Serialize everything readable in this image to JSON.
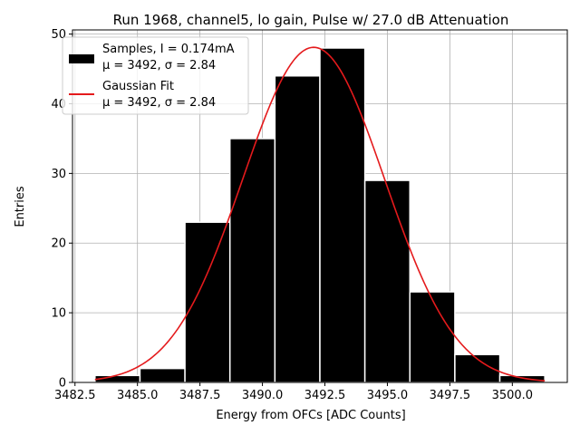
{
  "chart_data": {
    "type": "bar",
    "title": "Run 1968, channel5, lo gain, Pulse w/ 27.0 dB Attenuation",
    "xlabel": "Energy from OFCs [ADC Counts]",
    "ylabel": "Entries",
    "xlim": [
      3482.4,
      3502.2
    ],
    "ylim": [
      0,
      50.6
    ],
    "xticks": [
      3482.5,
      3485.0,
      3487.5,
      3490.0,
      3492.5,
      3495.0,
      3497.5,
      3500.0
    ],
    "xtick_labels": [
      "3482.5",
      "3485.0",
      "3487.5",
      "3490.0",
      "3492.5",
      "3495.0",
      "3497.5",
      "3500.0"
    ],
    "yticks": [
      0,
      10,
      20,
      30,
      40,
      50
    ],
    "ytick_labels": [
      "0",
      "10",
      "20",
      "30",
      "40",
      "50"
    ],
    "grid": true,
    "legend_position": "top-left",
    "bins": [
      {
        "left": 3483.3,
        "right": 3485.1,
        "count": 1
      },
      {
        "left": 3485.1,
        "right": 3486.9,
        "count": 2
      },
      {
        "left": 3486.9,
        "right": 3488.7,
        "count": 23
      },
      {
        "left": 3488.7,
        "right": 3490.5,
        "count": 35
      },
      {
        "left": 3490.5,
        "right": 3492.3,
        "count": 44
      },
      {
        "left": 3492.3,
        "right": 3494.1,
        "count": 48
      },
      {
        "left": 3494.1,
        "right": 3495.9,
        "count": 29
      },
      {
        "left": 3495.9,
        "right": 3497.7,
        "count": 13
      },
      {
        "left": 3497.7,
        "right": 3499.5,
        "count": 4
      },
      {
        "left": 3499.5,
        "right": 3501.3,
        "count": 1
      }
    ],
    "series": [
      {
        "name": "Samples, I = 0.174mA",
        "stats_label": "μ = 3492, σ = 2.84",
        "kind": "histogram",
        "color": "#000000"
      },
      {
        "name": "Gaussian Fit",
        "stats_label": "μ = 3492, σ = 2.84",
        "kind": "line",
        "color": "#e41a1c",
        "mu": 3492.05,
        "sigma": 2.84,
        "amplitude": 48.1,
        "x_range": [
          3483.3,
          3501.3
        ]
      }
    ]
  }
}
